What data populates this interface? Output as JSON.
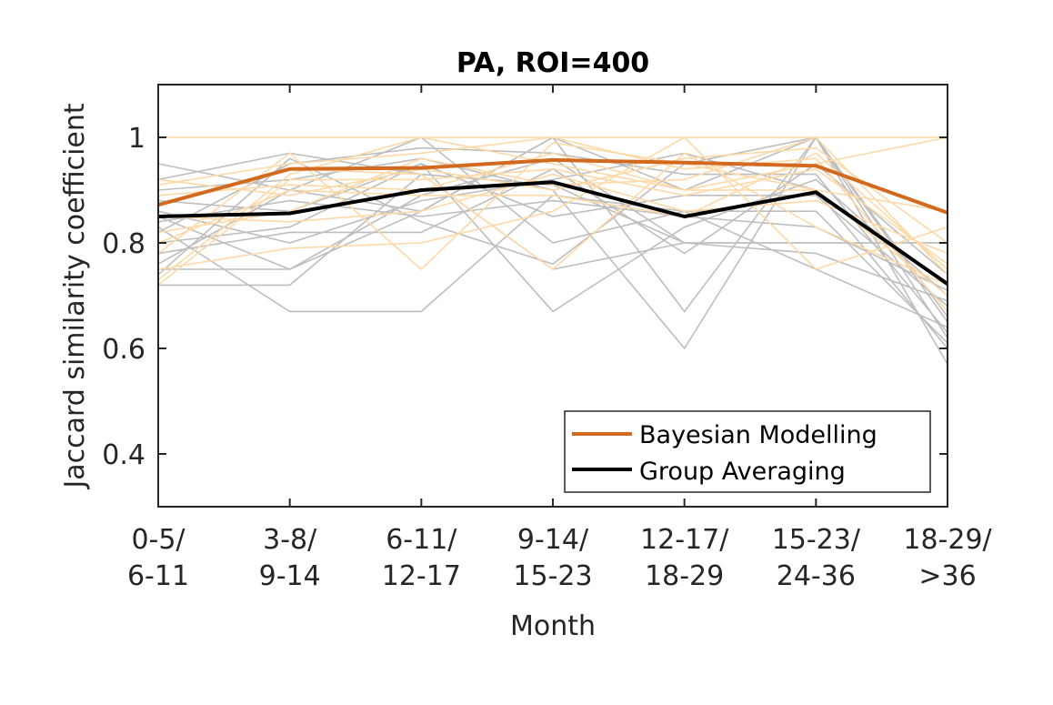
{
  "chart_data": {
    "type": "line",
    "title": "PA, ROI=400",
    "xlabel": "Month",
    "ylabel": "Jaccard similarity coefficient",
    "categories": [
      [
        "0-5/",
        "6-11"
      ],
      [
        "3-8/",
        "9-14"
      ],
      [
        "6-11/",
        "12-17"
      ],
      [
        "9-14/",
        "15-23"
      ],
      [
        "12-17/",
        "18-29"
      ],
      [
        "15-23/",
        "24-36"
      ],
      [
        "18-29/",
        ">36"
      ]
    ],
    "ylim": [
      0.3,
      1.1
    ],
    "yticks": [
      0.4,
      0.6,
      0.8,
      1
    ],
    "ytick_labels": [
      "0.4",
      "0.6",
      "0.8",
      "1"
    ],
    "grid": false,
    "legend_position": "bottom-right",
    "series": [
      {
        "name": "Bayesian Modelling",
        "color": "#D2691E",
        "values": [
          0.872,
          0.94,
          0.942,
          0.957,
          0.952,
          0.946,
          0.857
        ]
      },
      {
        "name": "Group Averaging",
        "color": "#000000",
        "values": [
          0.85,
          0.856,
          0.9,
          0.915,
          0.85,
          0.896,
          0.722
        ]
      }
    ],
    "background_series": {
      "gray_color": "#BEBEBE",
      "orange_color": "#FDD9A8",
      "gray": [
        [
          0.95,
          0.9,
          0.86,
          1.0,
          0.9,
          1.0,
          0.62
        ],
        [
          0.92,
          0.97,
          0.93,
          0.75,
          0.8,
          0.8,
          0.8
        ],
        [
          0.9,
          0.92,
          0.96,
          0.9,
          0.6,
          1.0,
          0.65
        ],
        [
          0.88,
          0.86,
          0.95,
          0.67,
          0.83,
          0.92,
          0.7
        ],
        [
          0.86,
          0.8,
          0.88,
          0.92,
          0.97,
          0.9,
          0.6
        ],
        [
          0.85,
          0.75,
          0.86,
          1.0,
          0.67,
          1.0,
          0.57
        ],
        [
          0.83,
          0.67,
          0.67,
          0.89,
          0.86,
          0.75,
          0.64
        ],
        [
          0.8,
          0.83,
          0.95,
          0.85,
          0.89,
          0.89,
          0.68
        ],
        [
          0.78,
          0.82,
          0.82,
          0.94,
          0.78,
          0.95,
          0.74
        ],
        [
          0.76,
          0.9,
          1.0,
          0.8,
          0.86,
          0.86,
          0.61
        ],
        [
          0.75,
          0.75,
          0.89,
          0.96,
          0.8,
          0.8,
          0.8
        ],
        [
          0.74,
          0.96,
          0.84,
          0.76,
          0.95,
          1.0,
          0.66
        ],
        [
          0.72,
          0.72,
          0.93,
          0.91,
          0.8,
          0.78,
          0.69
        ],
        [
          0.82,
          0.95,
          0.98,
          0.97,
          0.93,
          0.93,
          0.63
        ],
        [
          0.84,
          0.88,
          0.85,
          0.88,
          0.85,
          0.83,
          0.71
        ]
      ],
      "orange": [
        [
          0.73,
          0.93,
          1.0,
          0.95,
          0.9,
          0.95,
          1.0
        ],
        [
          0.75,
          0.79,
          0.8,
          0.86,
          1.0,
          0.75,
          0.83
        ],
        [
          0.78,
          0.97,
          0.75,
          0.99,
          0.95,
          0.9,
          0.7
        ],
        [
          0.8,
          0.9,
          0.89,
          0.89,
          0.85,
          0.97,
          0.75
        ],
        [
          0.82,
          0.86,
          0.96,
          0.91,
          0.92,
          1.0,
          0.74
        ],
        [
          0.85,
          0.84,
          0.86,
          0.93,
          0.86,
          0.88,
          0.78
        ],
        [
          0.87,
          0.94,
          0.93,
          0.75,
          0.97,
          0.83,
          0.72
        ],
        [
          0.89,
          0.91,
          0.9,
          0.97,
          0.9,
          0.9,
          0.86
        ],
        [
          0.91,
          0.95,
          0.97,
          1.0,
          0.94,
          0.96,
          0.67
        ],
        [
          0.72,
          0.92,
          0.92,
          0.94,
          0.89,
          0.94,
          0.76
        ],
        [
          1.0,
          1.0,
          1.0,
          1.0,
          1.0,
          1.0,
          1.0
        ],
        [
          0.92,
          0.89,
          0.94,
          0.9,
          0.96,
          0.98,
          0.8
        ]
      ]
    }
  }
}
